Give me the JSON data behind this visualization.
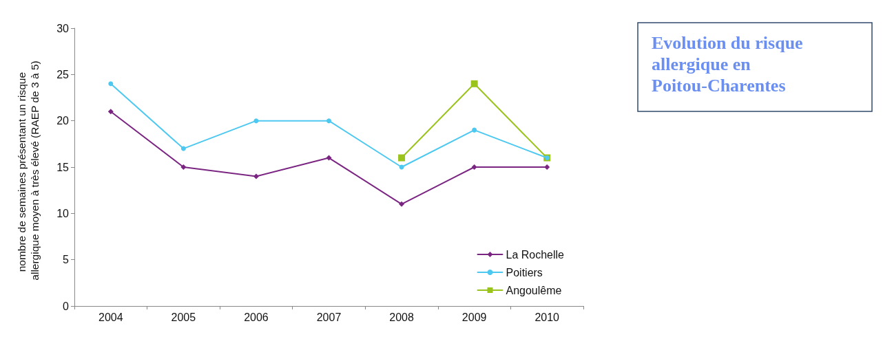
{
  "chart_data": {
    "type": "line",
    "title": "Evolution du risque allergique en Poitou-Charentes",
    "ylabel": "nombre de semaines présentant un risque allergique moyen à très élevé (RAEP de 3 à 5)",
    "categories": [
      "2004",
      "2005",
      "2006",
      "2007",
      "2008",
      "2009",
      "2010"
    ],
    "series": [
      {
        "name": "La Rochelle",
        "color": "#7b2582",
        "marker": "diamond",
        "values": [
          21,
          15,
          14,
          16,
          11,
          15,
          15
        ]
      },
      {
        "name": "Poitiers",
        "color": "#4dc8f0",
        "marker": "circle",
        "values": [
          24,
          17,
          20,
          20,
          15,
          19,
          16
        ]
      },
      {
        "name": "Angoulême",
        "color": "#9ac31c",
        "marker": "square",
        "values": [
          null,
          null,
          null,
          null,
          16,
          24,
          16
        ]
      }
    ],
    "ylim": [
      0,
      30
    ],
    "yticks": [
      0,
      5,
      10,
      15,
      20,
      25,
      30
    ],
    "grid": false,
    "legend": "bottom right",
    "line_style": "solid"
  }
}
